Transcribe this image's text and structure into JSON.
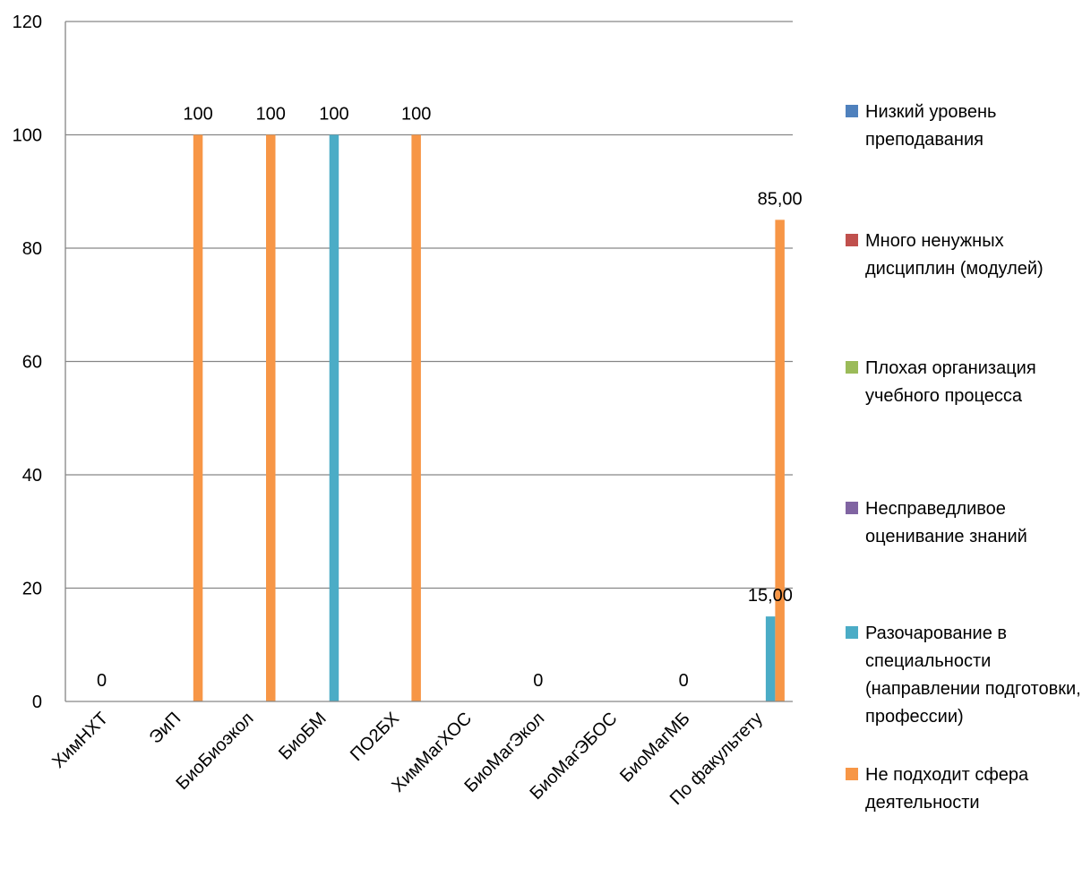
{
  "chart_data": {
    "type": "bar",
    "categories": [
      "ХимНХТ",
      "ЭиП",
      "БиоБиоэкол",
      "БиоБМ",
      "ПО2БХ",
      "ХимМагХОС",
      "БиоМагЭкол",
      "БиоМагЭБОС",
      "БиоМагМБ",
      "По факультету"
    ],
    "ylim": [
      0,
      120
    ],
    "yticks": [
      0,
      20,
      40,
      60,
      80,
      100,
      120
    ],
    "grid": true,
    "legend_position": "right",
    "series": [
      {
        "name": "Низкий уровень преподавания",
        "color": "#4F81BD",
        "values": [
          0,
          0,
          0,
          0,
          0,
          0,
          0,
          0,
          0,
          0
        ]
      },
      {
        "name": "Много ненужных дисциплин (модулей)",
        "color": "#C0504D",
        "values": [
          0,
          0,
          0,
          0,
          0,
          0,
          0,
          0,
          0,
          0
        ]
      },
      {
        "name": "Плохая организация учебного процесса",
        "color": "#9BBB59",
        "values": [
          0,
          0,
          0,
          0,
          0,
          0,
          0,
          0,
          0,
          0
        ]
      },
      {
        "name": "Несправедливое оценивание знаний",
        "color": "#8064A2",
        "values": [
          0,
          0,
          0,
          0,
          0,
          0,
          0,
          0,
          0,
          0
        ]
      },
      {
        "name": "Разочарование в специальности (направлении подготовки, профессии)",
        "color": "#4BACC6",
        "values": [
          0,
          0,
          0,
          100,
          0,
          0,
          0,
          0,
          0,
          15
        ]
      },
      {
        "name": "Не подходит сфера деятельности",
        "color": "#F79646",
        "values": [
          0,
          100,
          100,
          0,
          100,
          0,
          0,
          0,
          0,
          85
        ]
      }
    ],
    "data_labels": [
      {
        "category": "ХимНХТ",
        "text": "0"
      },
      {
        "category": "ЭиП",
        "text": "100"
      },
      {
        "category": "БиоБиоэкол",
        "text": "100"
      },
      {
        "category": "БиоБМ",
        "text": "100"
      },
      {
        "category": "ПО2БХ",
        "text": "100"
      },
      {
        "category": "БиоМагЭкол",
        "text": "0"
      },
      {
        "category": "БиоМагМБ",
        "text": "0"
      },
      {
        "category": "По факультету",
        "series": 4,
        "text": "15,00"
      },
      {
        "category": "По факультету",
        "series": 5,
        "text": "85,00"
      }
    ]
  }
}
